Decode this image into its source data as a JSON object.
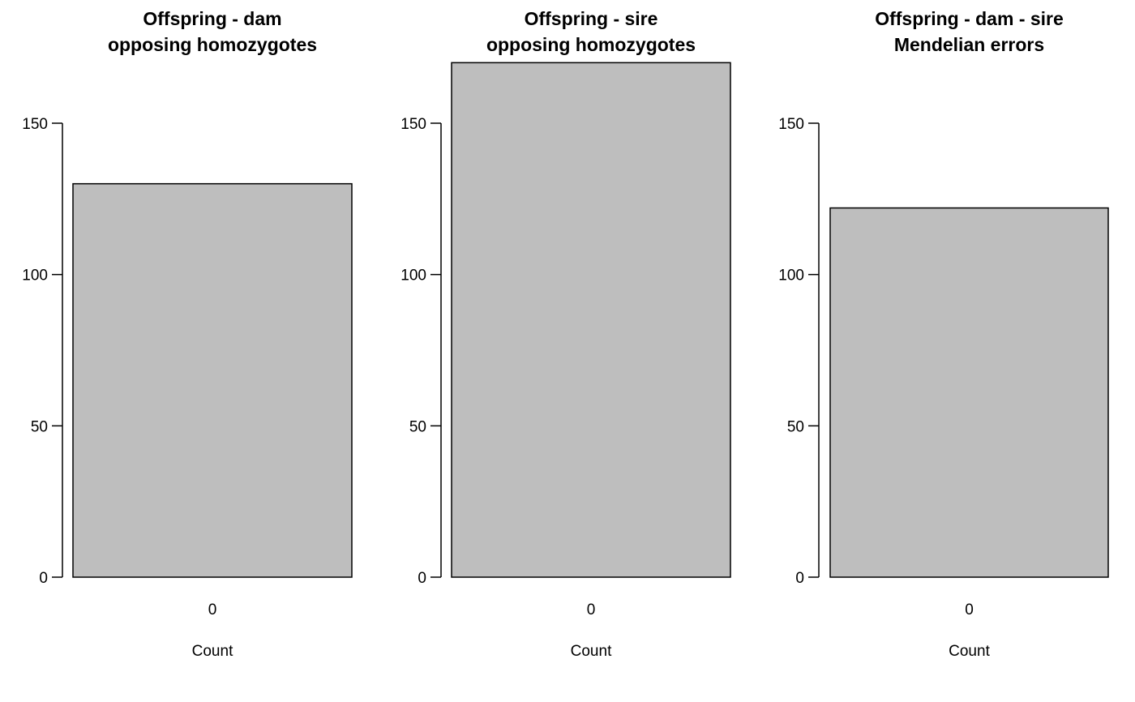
{
  "chart_data": [
    {
      "type": "bar",
      "title": [
        "Offspring - dam",
        "opposing homozygotes"
      ],
      "categories": [
        "0"
      ],
      "values": [
        130
      ],
      "xlabel": "Count",
      "ylabel": "",
      "ylim": [
        0,
        170
      ],
      "yticks": [
        0,
        50,
        100,
        150
      ],
      "bar_color": "#bebebe",
      "grid": false
    },
    {
      "type": "bar",
      "title": [
        "Offspring - sire",
        "opposing homozygotes"
      ],
      "categories": [
        "0"
      ],
      "values": [
        170
      ],
      "xlabel": "Count",
      "ylabel": "",
      "ylim": [
        0,
        170
      ],
      "yticks": [
        0,
        50,
        100,
        150
      ],
      "bar_color": "#bebebe",
      "grid": false
    },
    {
      "type": "bar",
      "title": [
        "Offspring - dam - sire",
        "Mendelian errors"
      ],
      "categories": [
        "0"
      ],
      "values": [
        122
      ],
      "xlabel": "Count",
      "ylabel": "",
      "ylim": [
        0,
        170
      ],
      "yticks": [
        0,
        50,
        100,
        150
      ],
      "bar_color": "#bebebe",
      "grid": false
    }
  ]
}
